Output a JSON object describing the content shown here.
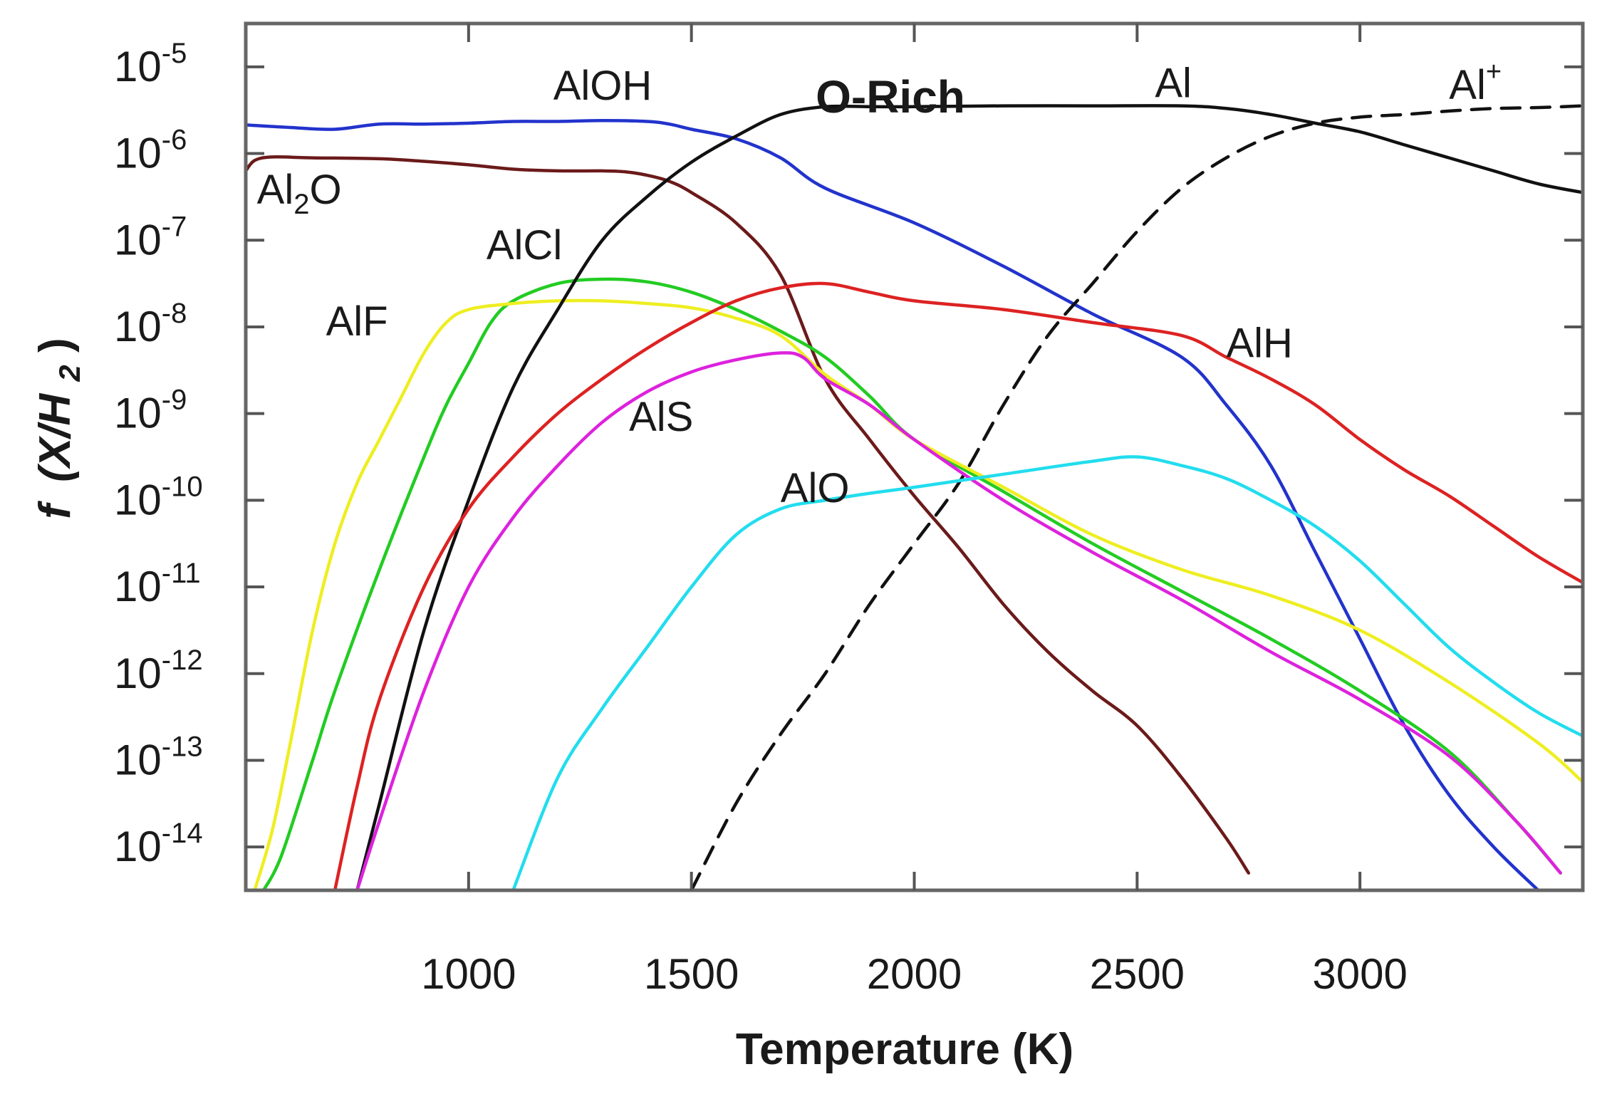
{
  "chart_data": {
    "type": "line",
    "title": "O-Rich",
    "xlabel": "Temperature (K)",
    "ylabel": {
      "italic_prefix": "f",
      "text": "(X/H",
      "sub": "2",
      "close": ")"
    },
    "xlim": [
      500,
      3500
    ],
    "ylim_log10": [
      -14.5,
      -4.5
    ],
    "xticks": [
      1000,
      1500,
      2000,
      2500,
      3000
    ],
    "xtick_labels": [
      "1000",
      "1500",
      "2000",
      "2500",
      "3000"
    ],
    "yticks": [
      {
        "exp": -5,
        "base": "10",
        "sup": "-5"
      },
      {
        "exp": -6,
        "base": "10",
        "sup": "-6"
      },
      {
        "exp": -7,
        "base": "10",
        "sup": "-7"
      },
      {
        "exp": -8,
        "base": "10",
        "sup": "-8"
      },
      {
        "exp": -9,
        "base": "10",
        "sup": "-9"
      },
      {
        "exp": -10,
        "base": "10",
        "sup": "-10"
      },
      {
        "exp": -11,
        "base": "10",
        "sup": "-11"
      },
      {
        "exp": -12,
        "base": "10",
        "sup": "-12"
      },
      {
        "exp": -13,
        "base": "10",
        "sup": "-13"
      },
      {
        "exp": -14,
        "base": "10",
        "sup": "-14"
      }
    ],
    "series": [
      {
        "name": "AlOH",
        "label": {
          "base": "AlOH"
        },
        "color": "#2233cc",
        "dash": false,
        "points": [
          [
            500,
            -5.67
          ],
          [
            600,
            -5.7
          ],
          [
            700,
            -5.72
          ],
          [
            800,
            -5.66
          ],
          [
            900,
            -5.66
          ],
          [
            1000,
            -5.65
          ],
          [
            1100,
            -5.63
          ],
          [
            1200,
            -5.63
          ],
          [
            1300,
            -5.62
          ],
          [
            1400,
            -5.63
          ],
          [
            1450,
            -5.66
          ],
          [
            1500,
            -5.72
          ],
          [
            1600,
            -5.83
          ],
          [
            1700,
            -6.05
          ],
          [
            1800,
            -6.4
          ],
          [
            2000,
            -6.8
          ],
          [
            2200,
            -7.3
          ],
          [
            2400,
            -7.85
          ],
          [
            2600,
            -8.35
          ],
          [
            2700,
            -8.9
          ],
          [
            2800,
            -9.6
          ],
          [
            2900,
            -10.6
          ],
          [
            3000,
            -11.6
          ],
          [
            3100,
            -12.6
          ],
          [
            3200,
            -13.4
          ],
          [
            3300,
            -14.0
          ],
          [
            3400,
            -14.5
          ]
        ]
      },
      {
        "name": "Al2O",
        "label": {
          "base": "Al",
          "sub": "2",
          "tail": "O"
        },
        "color": "#6b1a1a",
        "dash": false,
        "points": [
          [
            500,
            -6.2
          ],
          [
            520,
            -6.08
          ],
          [
            560,
            -6.04
          ],
          [
            650,
            -6.05
          ],
          [
            800,
            -6.06
          ],
          [
            900,
            -6.09
          ],
          [
            1000,
            -6.13
          ],
          [
            1100,
            -6.18
          ],
          [
            1200,
            -6.2
          ],
          [
            1300,
            -6.2
          ],
          [
            1350,
            -6.21
          ],
          [
            1400,
            -6.25
          ],
          [
            1450,
            -6.32
          ],
          [
            1500,
            -6.45
          ],
          [
            1600,
            -6.8
          ],
          [
            1700,
            -7.4
          ],
          [
            1800,
            -8.6
          ],
          [
            1900,
            -9.3
          ],
          [
            2000,
            -9.95
          ],
          [
            2100,
            -10.55
          ],
          [
            2200,
            -11.2
          ],
          [
            2300,
            -11.75
          ],
          [
            2400,
            -12.2
          ],
          [
            2500,
            -12.6
          ],
          [
            2600,
            -13.2
          ],
          [
            2700,
            -13.9
          ],
          [
            2750,
            -14.3
          ]
        ]
      },
      {
        "name": "AlCl",
        "label": {
          "base": "AlCl"
        },
        "color": "#22cc22",
        "dash": false,
        "points": [
          [
            540,
            -14.5
          ],
          [
            580,
            -14.1
          ],
          [
            650,
            -13.0
          ],
          [
            700,
            -12.2
          ],
          [
            800,
            -10.8
          ],
          [
            900,
            -9.5
          ],
          [
            950,
            -8.9
          ],
          [
            1000,
            -8.42
          ],
          [
            1050,
            -7.95
          ],
          [
            1100,
            -7.7
          ],
          [
            1200,
            -7.5
          ],
          [
            1300,
            -7.45
          ],
          [
            1400,
            -7.48
          ],
          [
            1500,
            -7.6
          ],
          [
            1600,
            -7.8
          ],
          [
            1700,
            -8.05
          ],
          [
            1800,
            -8.35
          ],
          [
            1900,
            -8.8
          ],
          [
            2000,
            -9.3
          ],
          [
            2200,
            -9.9
          ],
          [
            2400,
            -10.5
          ],
          [
            2600,
            -11.05
          ],
          [
            2800,
            -11.6
          ],
          [
            3000,
            -12.2
          ],
          [
            3200,
            -12.9
          ],
          [
            3350,
            -13.7
          ],
          [
            3450,
            -14.3
          ]
        ]
      },
      {
        "name": "AlF",
        "label": {
          "base": "AlF"
        },
        "color": "#eeee22",
        "dash": false,
        "points": [
          [
            520,
            -14.5
          ],
          [
            560,
            -13.8
          ],
          [
            600,
            -12.8
          ],
          [
            650,
            -11.5
          ],
          [
            700,
            -10.5
          ],
          [
            750,
            -9.8
          ],
          [
            800,
            -9.3
          ],
          [
            850,
            -8.8
          ],
          [
            900,
            -8.3
          ],
          [
            950,
            -7.95
          ],
          [
            1000,
            -7.8
          ],
          [
            1100,
            -7.73
          ],
          [
            1200,
            -7.7
          ],
          [
            1300,
            -7.7
          ],
          [
            1400,
            -7.73
          ],
          [
            1500,
            -7.78
          ],
          [
            1600,
            -7.9
          ],
          [
            1700,
            -8.1
          ],
          [
            1800,
            -8.55
          ],
          [
            1900,
            -8.9
          ],
          [
            2000,
            -9.3
          ],
          [
            2200,
            -9.85
          ],
          [
            2400,
            -10.4
          ],
          [
            2600,
            -10.8
          ],
          [
            2800,
            -11.1
          ],
          [
            3000,
            -11.5
          ],
          [
            3200,
            -12.1
          ],
          [
            3400,
            -12.8
          ],
          [
            3500,
            -13.25
          ]
        ]
      },
      {
        "name": "Al",
        "label": {
          "base": "Al"
        },
        "color": "#111111",
        "dash": false,
        "points": [
          [
            750,
            -14.5
          ],
          [
            800,
            -13.5
          ],
          [
            900,
            -11.5
          ],
          [
            1000,
            -10.0
          ],
          [
            1100,
            -8.7
          ],
          [
            1200,
            -7.8
          ],
          [
            1300,
            -7.0
          ],
          [
            1400,
            -6.5
          ],
          [
            1500,
            -6.1
          ],
          [
            1600,
            -5.8
          ],
          [
            1700,
            -5.55
          ],
          [
            1800,
            -5.46
          ],
          [
            1900,
            -5.46
          ],
          [
            2000,
            -5.46
          ],
          [
            2200,
            -5.45
          ],
          [
            2400,
            -5.45
          ],
          [
            2600,
            -5.45
          ],
          [
            2700,
            -5.48
          ],
          [
            2800,
            -5.55
          ],
          [
            2900,
            -5.65
          ],
          [
            3000,
            -5.75
          ],
          [
            3100,
            -5.9
          ],
          [
            3200,
            -6.05
          ],
          [
            3300,
            -6.2
          ],
          [
            3400,
            -6.35
          ],
          [
            3500,
            -6.45
          ]
        ]
      },
      {
        "name": "Al+",
        "label": {
          "base": "Al",
          "sup": "+"
        },
        "color": "#111111",
        "dash": true,
        "points": [
          [
            1500,
            -14.5
          ],
          [
            1600,
            -13.5
          ],
          [
            1700,
            -12.7
          ],
          [
            1800,
            -12.0
          ],
          [
            1900,
            -11.2
          ],
          [
            2000,
            -10.5
          ],
          [
            2100,
            -9.8
          ],
          [
            2200,
            -8.9
          ],
          [
            2300,
            -8.1
          ],
          [
            2400,
            -7.5
          ],
          [
            2500,
            -6.9
          ],
          [
            2600,
            -6.4
          ],
          [
            2700,
            -6.05
          ],
          [
            2800,
            -5.8
          ],
          [
            2900,
            -5.65
          ],
          [
            3000,
            -5.58
          ],
          [
            3100,
            -5.55
          ],
          [
            3200,
            -5.51
          ],
          [
            3300,
            -5.48
          ],
          [
            3400,
            -5.47
          ],
          [
            3500,
            -5.45
          ]
        ]
      },
      {
        "name": "AlH",
        "label": {
          "base": "AlH"
        },
        "color": "#dd2222",
        "dash": false,
        "points": [
          [
            700,
            -14.5
          ],
          [
            750,
            -13.3
          ],
          [
            800,
            -12.3
          ],
          [
            900,
            -11.0
          ],
          [
            1000,
            -10.1
          ],
          [
            1100,
            -9.5
          ],
          [
            1200,
            -9.0
          ],
          [
            1300,
            -8.6
          ],
          [
            1400,
            -8.25
          ],
          [
            1500,
            -7.95
          ],
          [
            1600,
            -7.7
          ],
          [
            1700,
            -7.55
          ],
          [
            1800,
            -7.5
          ],
          [
            1900,
            -7.6
          ],
          [
            2000,
            -7.7
          ],
          [
            2200,
            -7.8
          ],
          [
            2400,
            -7.95
          ],
          [
            2600,
            -8.1
          ],
          [
            2700,
            -8.35
          ],
          [
            2800,
            -8.6
          ],
          [
            2900,
            -8.9
          ],
          [
            3000,
            -9.3
          ],
          [
            3100,
            -9.65
          ],
          [
            3200,
            -9.95
          ],
          [
            3300,
            -10.3
          ],
          [
            3400,
            -10.65
          ],
          [
            3500,
            -10.95
          ]
        ]
      },
      {
        "name": "AlS",
        "label": {
          "base": "AlS"
        },
        "color": "#dd22dd",
        "dash": false,
        "points": [
          [
            750,
            -14.5
          ],
          [
            800,
            -13.7
          ],
          [
            900,
            -12.2
          ],
          [
            1000,
            -11.0
          ],
          [
            1100,
            -10.2
          ],
          [
            1200,
            -9.6
          ],
          [
            1300,
            -9.1
          ],
          [
            1400,
            -8.75
          ],
          [
            1500,
            -8.52
          ],
          [
            1600,
            -8.38
          ],
          [
            1700,
            -8.3
          ],
          [
            1750,
            -8.35
          ],
          [
            1800,
            -8.6
          ],
          [
            1900,
            -8.9
          ],
          [
            2000,
            -9.3
          ],
          [
            2200,
            -10.0
          ],
          [
            2400,
            -10.6
          ],
          [
            2600,
            -11.15
          ],
          [
            2800,
            -11.75
          ],
          [
            3000,
            -12.3
          ],
          [
            3200,
            -12.95
          ],
          [
            3350,
            -13.7
          ],
          [
            3450,
            -14.3
          ]
        ]
      },
      {
        "name": "AlO",
        "label": {
          "base": "AlO"
        },
        "color": "#22ddee",
        "dash": false,
        "points": [
          [
            1100,
            -14.5
          ],
          [
            1200,
            -13.2
          ],
          [
            1300,
            -12.4
          ],
          [
            1400,
            -11.7
          ],
          [
            1500,
            -11.0
          ],
          [
            1600,
            -10.4
          ],
          [
            1700,
            -10.1
          ],
          [
            1800,
            -10.0
          ],
          [
            1900,
            -9.92
          ],
          [
            2000,
            -9.85
          ],
          [
            2200,
            -9.7
          ],
          [
            2400,
            -9.55
          ],
          [
            2500,
            -9.5
          ],
          [
            2600,
            -9.6
          ],
          [
            2700,
            -9.75
          ],
          [
            2800,
            -10.0
          ],
          [
            2900,
            -10.3
          ],
          [
            3000,
            -10.7
          ],
          [
            3100,
            -11.2
          ],
          [
            3200,
            -11.7
          ],
          [
            3300,
            -12.1
          ],
          [
            3400,
            -12.45
          ],
          [
            3500,
            -12.72
          ]
        ]
      }
    ],
    "labels": [
      {
        "series": "AlOH",
        "x": 1190,
        "y": -5.38
      },
      {
        "series": "Al2O",
        "x": 525,
        "y": -6.58
      },
      {
        "series": "AlCl",
        "x": 1040,
        "y": -7.22
      },
      {
        "series": "AlF",
        "x": 680,
        "y": -8.1
      },
      {
        "series": "Al",
        "x": 2540,
        "y": -5.35
      },
      {
        "series": "Al+",
        "x": 3200,
        "y": -5.37
      },
      {
        "series": "AlH",
        "x": 2700,
        "y": -8.35
      },
      {
        "series": "AlS",
        "x": 1360,
        "y": -9.2
      },
      {
        "series": "AlO",
        "x": 1700,
        "y": -10.02
      }
    ]
  }
}
